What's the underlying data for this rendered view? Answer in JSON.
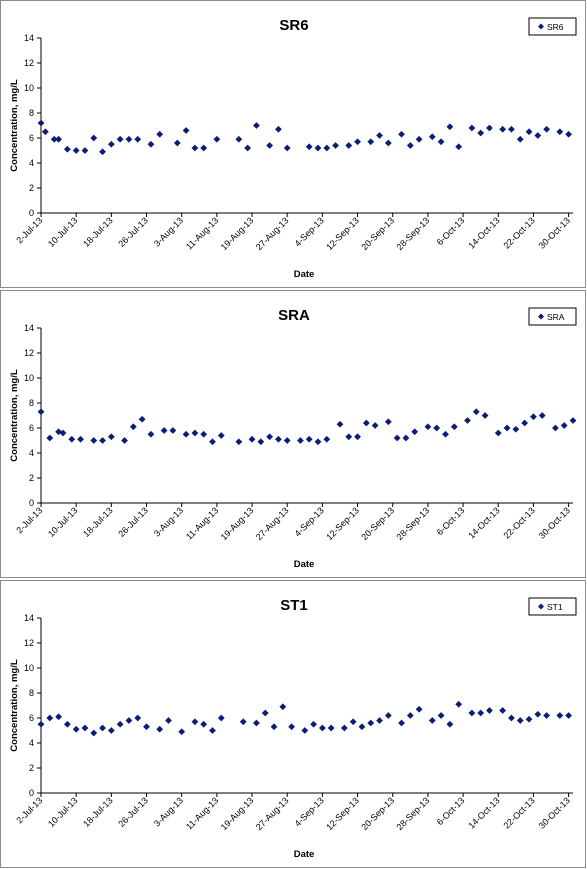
{
  "chart_data": [
    {
      "type": "scatter",
      "title": "SR6",
      "xlabel": "Date",
      "ylabel": "Concentration, mg/L",
      "ylim": [
        0,
        14
      ],
      "yticks": [
        0,
        2,
        4,
        6,
        8,
        10,
        12,
        14
      ],
      "xlim": [
        "2-Jul-13",
        "31-Oct-13"
      ],
      "xticks": [
        "2-Jul-13",
        "10-Jul-13",
        "18-Jul-13",
        "26-Jul-13",
        "3-Aug-13",
        "11-Aug-13",
        "19-Aug-13",
        "27-Aug-13",
        "4-Sep-13",
        "12-Sep-13",
        "20-Sep-13",
        "28-Sep-13",
        "6-Oct-13",
        "14-Oct-13",
        "22-Oct-13",
        "30-Oct-13"
      ],
      "grid": false,
      "legend_position": "top-right",
      "marker_color": "#0a1e78",
      "series": [
        {
          "name": "SR6",
          "x": [
            "2-Jul-13",
            "3-Jul-13",
            "5-Jul-13",
            "6-Jul-13",
            "8-Jul-13",
            "10-Jul-13",
            "12-Jul-13",
            "14-Jul-13",
            "16-Jul-13",
            "18-Jul-13",
            "20-Jul-13",
            "22-Jul-13",
            "24-Jul-13",
            "27-Jul-13",
            "29-Jul-13",
            "2-Aug-13",
            "4-Aug-13",
            "6-Aug-13",
            "8-Aug-13",
            "11-Aug-13",
            "16-Aug-13",
            "18-Aug-13",
            "20-Aug-13",
            "23-Aug-13",
            "25-Aug-13",
            "27-Aug-13",
            "1-Sep-13",
            "3-Sep-13",
            "5-Sep-13",
            "7-Sep-13",
            "10-Sep-13",
            "12-Sep-13",
            "15-Sep-13",
            "17-Sep-13",
            "19-Sep-13",
            "22-Sep-13",
            "24-Sep-13",
            "26-Sep-13",
            "29-Sep-13",
            "1-Oct-13",
            "3-Oct-13",
            "5-Oct-13",
            "8-Oct-13",
            "10-Oct-13",
            "12-Oct-13",
            "15-Oct-13",
            "17-Oct-13",
            "19-Oct-13",
            "21-Oct-13",
            "23-Oct-13",
            "25-Oct-13",
            "28-Oct-13",
            "30-Oct-13"
          ],
          "y": [
            7.2,
            6.5,
            5.9,
            5.9,
            5.1,
            5.0,
            5.0,
            6.0,
            4.9,
            5.5,
            5.9,
            5.9,
            5.9,
            5.5,
            6.3,
            5.6,
            6.6,
            5.2,
            5.2,
            5.9,
            5.9,
            5.2,
            7.0,
            5.4,
            6.7,
            5.2,
            5.3,
            5.2,
            5.2,
            5.4,
            5.4,
            5.7,
            5.7,
            6.2,
            5.6,
            6.3,
            5.4,
            5.9,
            6.1,
            5.7,
            6.9,
            5.3,
            6.8,
            6.4,
            6.8,
            6.7,
            6.7,
            5.9,
            6.5,
            6.2,
            6.7,
            6.5,
            6.3
          ]
        }
      ]
    },
    {
      "type": "scatter",
      "title": "SRA",
      "xlabel": "Date",
      "ylabel": "Concentration, mg/L",
      "ylim": [
        0,
        14
      ],
      "yticks": [
        0,
        2,
        4,
        6,
        8,
        10,
        12,
        14
      ],
      "xlim": [
        "2-Jul-13",
        "31-Oct-13"
      ],
      "xticks": [
        "2-Jul-13",
        "10-Jul-13",
        "18-Jul-13",
        "26-Jul-13",
        "3-Aug-13",
        "11-Aug-13",
        "19-Aug-13",
        "27-Aug-13",
        "4-Sep-13",
        "12-Sep-13",
        "20-Sep-13",
        "28-Sep-13",
        "6-Oct-13",
        "14-Oct-13",
        "22-Oct-13",
        "30-Oct-13"
      ],
      "grid": false,
      "legend_position": "top-right",
      "marker_color": "#0a1e78",
      "series": [
        {
          "name": "SRA",
          "x": [
            "2-Jul-13",
            "4-Jul-13",
            "6-Jul-13",
            "7-Jul-13",
            "9-Jul-13",
            "11-Jul-13",
            "14-Jul-13",
            "16-Jul-13",
            "18-Jul-13",
            "21-Jul-13",
            "23-Jul-13",
            "25-Jul-13",
            "27-Jul-13",
            "30-Jul-13",
            "1-Aug-13",
            "4-Aug-13",
            "6-Aug-13",
            "8-Aug-13",
            "10-Aug-13",
            "12-Aug-13",
            "16-Aug-13",
            "19-Aug-13",
            "21-Aug-13",
            "23-Aug-13",
            "25-Aug-13",
            "27-Aug-13",
            "30-Aug-13",
            "1-Sep-13",
            "3-Sep-13",
            "5-Sep-13",
            "8-Sep-13",
            "10-Sep-13",
            "12-Sep-13",
            "14-Sep-13",
            "16-Sep-13",
            "19-Sep-13",
            "21-Sep-13",
            "23-Sep-13",
            "25-Sep-13",
            "28-Sep-13",
            "30-Sep-13",
            "2-Oct-13",
            "4-Oct-13",
            "7-Oct-13",
            "9-Oct-13",
            "11-Oct-13",
            "14-Oct-13",
            "16-Oct-13",
            "18-Oct-13",
            "20-Oct-13",
            "22-Oct-13",
            "24-Oct-13",
            "27-Oct-13",
            "29-Oct-13",
            "31-Oct-13"
          ],
          "y": [
            7.3,
            5.2,
            5.7,
            5.6,
            5.1,
            5.1,
            5.0,
            5.0,
            5.3,
            5.0,
            6.1,
            6.7,
            5.5,
            5.8,
            5.8,
            5.5,
            5.6,
            5.5,
            4.9,
            5.4,
            4.9,
            5.1,
            4.9,
            5.3,
            5.1,
            5.0,
            5.0,
            5.1,
            4.9,
            5.1,
            6.3,
            5.3,
            5.3,
            6.4,
            6.2,
            6.5,
            5.2,
            5.2,
            5.7,
            6.1,
            6.0,
            5.5,
            6.1,
            6.6,
            7.3,
            7.0,
            5.6,
            6.0,
            5.9,
            6.4,
            6.9,
            7.0,
            6.0,
            6.2,
            6.6
          ]
        }
      ]
    },
    {
      "type": "scatter",
      "title": "ST1",
      "xlabel": "Date",
      "ylabel": "Concentration, mg/L",
      "ylim": [
        0,
        14
      ],
      "yticks": [
        0,
        2,
        4,
        6,
        8,
        10,
        12,
        14
      ],
      "xlim": [
        "2-Jul-13",
        "31-Oct-13"
      ],
      "xticks": [
        "2-Jul-13",
        "10-Jul-13",
        "18-Jul-13",
        "26-Jul-13",
        "3-Aug-13",
        "11-Aug-13",
        "19-Aug-13",
        "27-Aug-13",
        "4-Sep-13",
        "12-Sep-13",
        "20-Sep-13",
        "28-Sep-13",
        "6-Oct-13",
        "14-Oct-13",
        "22-Oct-13",
        "30-Oct-13"
      ],
      "grid": false,
      "legend_position": "top-right",
      "marker_color": "#0a1e78",
      "series": [
        {
          "name": "ST1",
          "x": [
            "2-Jul-13",
            "4-Jul-13",
            "6-Jul-13",
            "8-Jul-13",
            "10-Jul-13",
            "12-Jul-13",
            "14-Jul-13",
            "16-Jul-13",
            "18-Jul-13",
            "20-Jul-13",
            "22-Jul-13",
            "24-Jul-13",
            "26-Jul-13",
            "29-Jul-13",
            "31-Jul-13",
            "3-Aug-13",
            "6-Aug-13",
            "8-Aug-13",
            "10-Aug-13",
            "12-Aug-13",
            "17-Aug-13",
            "20-Aug-13",
            "22-Aug-13",
            "24-Aug-13",
            "26-Aug-13",
            "28-Aug-13",
            "31-Aug-13",
            "2-Sep-13",
            "4-Sep-13",
            "6-Sep-13",
            "9-Sep-13",
            "11-Sep-13",
            "13-Sep-13",
            "15-Sep-13",
            "17-Sep-13",
            "19-Sep-13",
            "22-Sep-13",
            "24-Sep-13",
            "26-Sep-13",
            "29-Sep-13",
            "1-Oct-13",
            "3-Oct-13",
            "5-Oct-13",
            "8-Oct-13",
            "10-Oct-13",
            "12-Oct-13",
            "15-Oct-13",
            "17-Oct-13",
            "19-Oct-13",
            "21-Oct-13",
            "23-Oct-13",
            "25-Oct-13",
            "28-Oct-13",
            "30-Oct-13"
          ],
          "y": [
            5.5,
            6.0,
            6.1,
            5.5,
            5.1,
            5.2,
            4.8,
            5.2,
            5.0,
            5.5,
            5.8,
            6.0,
            5.3,
            5.1,
            5.8,
            4.9,
            5.7,
            5.5,
            5.0,
            6.0,
            5.7,
            5.6,
            6.4,
            5.3,
            6.9,
            5.3,
            5.0,
            5.5,
            5.2,
            5.2,
            5.2,
            5.7,
            5.3,
            5.6,
            5.8,
            6.2,
            5.6,
            6.2,
            6.7,
            5.8,
            6.2,
            5.5,
            7.1,
            6.4,
            6.4,
            6.6,
            6.6,
            6.0,
            5.8,
            5.9,
            6.3,
            6.2,
            6.2,
            6.2
          ]
        }
      ]
    }
  ]
}
